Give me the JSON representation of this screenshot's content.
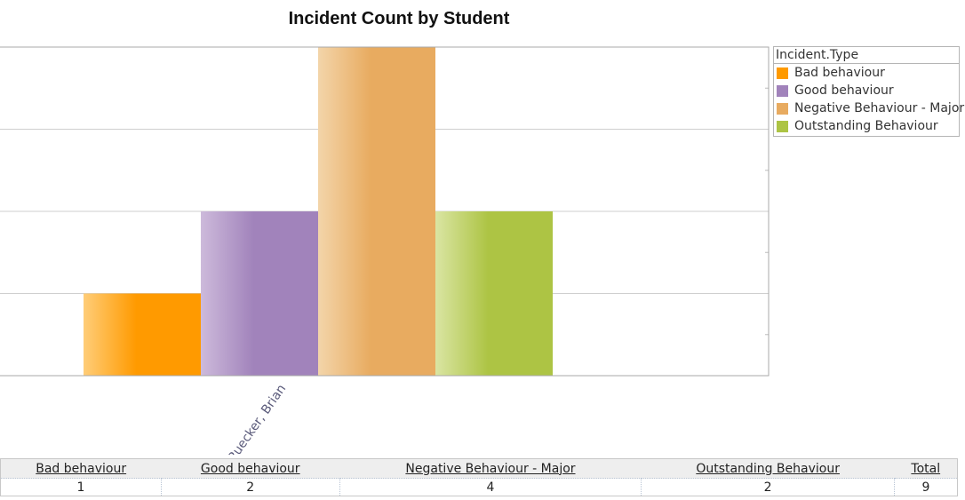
{
  "chart_data": {
    "type": "bar",
    "title": "Incident Count by Student",
    "xlabel": "",
    "ylabel": "",
    "categories": [
      "Ruecker, Brian"
    ],
    "ylim": [
      0,
      4
    ],
    "series": [
      {
        "name": "Bad behaviour",
        "values": [
          1
        ],
        "color": "#ff9a00",
        "light": "#ffcd78"
      },
      {
        "name": "Good behaviour",
        "values": [
          2
        ],
        "color": "#a183bb",
        "light": "#cdbadb"
      },
      {
        "name": "Negative Behaviour - Major",
        "values": [
          4
        ],
        "color": "#e8ab60",
        "light": "#f3d5aa"
      },
      {
        "name": "Outstanding Behaviour",
        "values": [
          2
        ],
        "color": "#adc444",
        "light": "#dae5a3"
      }
    ],
    "legend": {
      "title": "Incident.Type",
      "position": "right"
    },
    "grid": true
  },
  "table": {
    "headers": [
      "Bad behaviour",
      "Good behaviour",
      "Negative Behaviour - Major",
      "Outstanding Behaviour",
      "Total"
    ],
    "values": [
      "1",
      "2",
      "4",
      "2",
      "9"
    ]
  }
}
